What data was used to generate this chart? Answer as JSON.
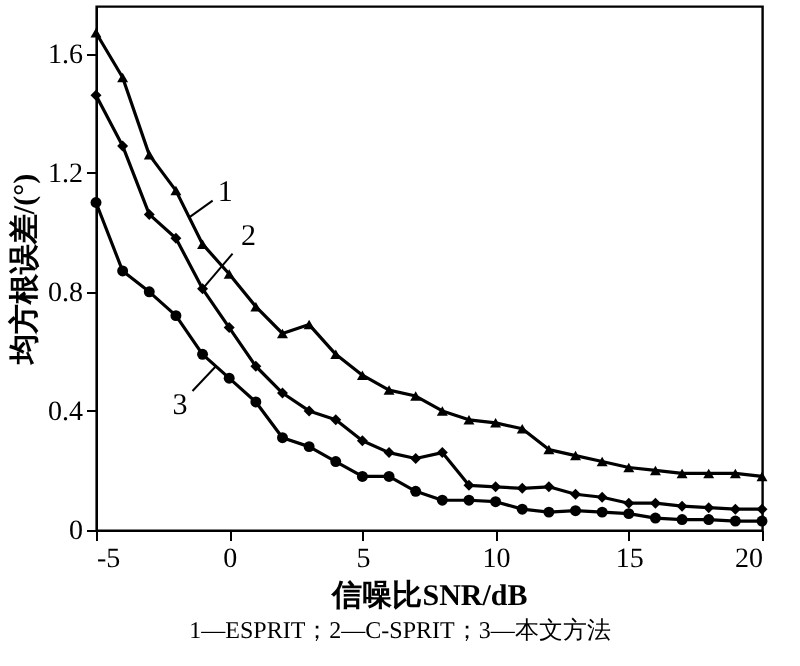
{
  "chart_data": {
    "type": "line",
    "xlabel": "信噪比SNR/dB",
    "ylabel": "均方根误差/(°)",
    "x": [
      -5,
      -4,
      -3,
      -2,
      -1,
      0,
      1,
      2,
      3,
      4,
      5,
      6,
      7,
      8,
      9,
      10,
      11,
      12,
      13,
      14,
      15,
      16,
      17,
      18,
      19,
      20
    ],
    "xlim": [
      -5,
      20
    ],
    "xticks": [
      -5,
      0,
      5,
      10,
      15,
      20
    ],
    "ylim": [
      0,
      1.76
    ],
    "yticks": [
      0,
      0.4,
      0.8,
      1.2,
      1.6
    ],
    "grid": false,
    "line_style": "solid",
    "series": [
      {
        "color": "#000000",
        "marker": "triangle",
        "values": [
          1.67,
          1.52,
          1.26,
          1.14,
          0.96,
          0.86,
          0.75,
          0.66,
          0.69,
          0.59,
          0.52,
          0.47,
          0.45,
          0.4,
          0.37,
          0.36,
          0.34,
          0.27,
          0.25,
          0.23,
          0.21,
          0.2,
          0.19,
          0.19,
          0.19,
          0.18
        ]
      },
      {
        "color": "#000000",
        "marker": "diamond",
        "values": [
          1.46,
          1.29,
          1.06,
          0.98,
          0.81,
          0.68,
          0.55,
          0.46,
          0.4,
          0.37,
          0.3,
          0.26,
          0.24,
          0.26,
          0.15,
          0.145,
          0.14,
          0.145,
          0.12,
          0.11,
          0.09,
          0.09,
          0.08,
          0.075,
          0.07,
          0.07
        ]
      },
      {
        "color": "#000000",
        "marker": "circle",
        "values": [
          1.1,
          0.87,
          0.8,
          0.72,
          0.59,
          0.51,
          0.43,
          0.31,
          0.28,
          0.23,
          0.18,
          0.18,
          0.13,
          0.1,
          0.1,
          0.095,
          0.07,
          0.06,
          0.065,
          0.06,
          0.055,
          0.04,
          0.035,
          0.035,
          0.03,
          0.03
        ]
      }
    ],
    "annotations": [
      {
        "text": "1",
        "x": -1.5,
        "y": 1.05
      },
      {
        "text": "2",
        "x": -1,
        "y": 0.81
      },
      {
        "text": "3",
        "x": -0.5,
        "y": 0.55
      },
      "1—ESPRIT；2—C-SPRIT；3—本文方法"
    ]
  }
}
